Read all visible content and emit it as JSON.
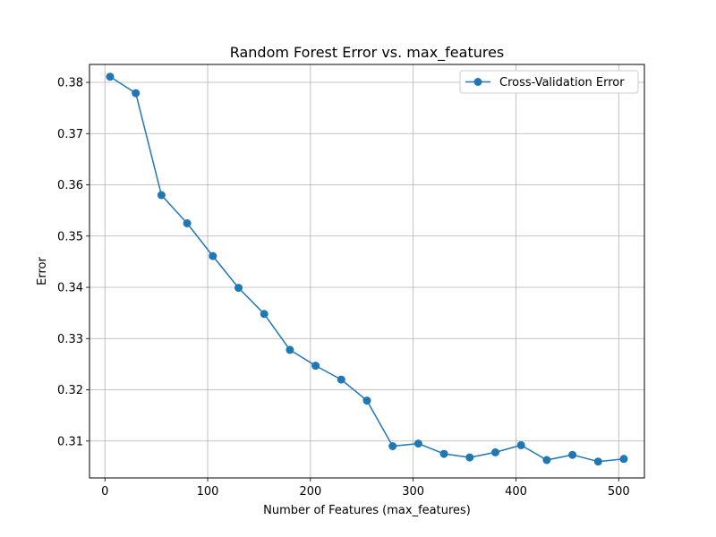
{
  "chart_data": {
    "type": "line",
    "title": "Random Forest Error vs. max_features",
    "xlabel": "Number of Features (max_features)",
    "ylabel": "Error",
    "xlim": [
      -15,
      525
    ],
    "ylim": [
      0.3028,
      0.3835
    ],
    "xticks": [
      0,
      100,
      200,
      300,
      400,
      500
    ],
    "yticks": [
      0.31,
      0.32,
      0.33,
      0.34,
      0.35,
      0.36,
      0.37,
      0.38
    ],
    "grid": true,
    "legend_position": "top-right",
    "series": [
      {
        "name": "Cross-Validation Error",
        "color": "#1f77b4",
        "marker": "circle",
        "x": [
          5,
          30,
          55,
          80,
          105,
          130,
          155,
          180,
          205,
          230,
          255,
          280,
          305,
          330,
          355,
          380,
          405,
          430,
          455,
          480,
          505
        ],
        "y": [
          0.3811,
          0.3779,
          0.358,
          0.3525,
          0.3461,
          0.3399,
          0.3348,
          0.3278,
          0.3247,
          0.322,
          0.3179,
          0.309,
          0.3095,
          0.3075,
          0.3068,
          0.3078,
          0.3092,
          0.3063,
          0.3073,
          0.306,
          0.3065
        ]
      }
    ]
  }
}
